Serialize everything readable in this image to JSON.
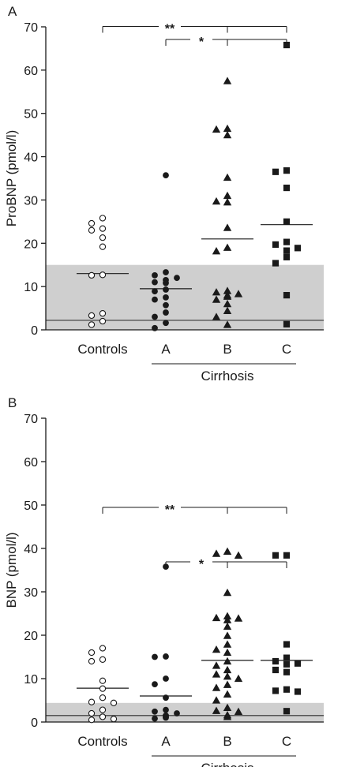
{
  "chart_data": [
    {
      "type": "scatter",
      "panel": "A",
      "ylabel": "ProBNP (pmol/l)",
      "ylim": [
        0,
        70
      ],
      "yticks": [
        0,
        10,
        20,
        30,
        40,
        50,
        60,
        70
      ],
      "categories": [
        "Controls",
        "A",
        "B",
        "C"
      ],
      "group_bracket_label": "Cirrhosis",
      "reference_band": [
        0,
        15
      ],
      "reference_line": 2.2,
      "significance": [
        {
          "label": "**",
          "from": "Controls",
          "to": [
            "B",
            "C"
          ]
        },
        {
          "label": "*",
          "from": "A",
          "to": [
            "B",
            "C"
          ]
        }
      ],
      "series": [
        {
          "category": "Controls",
          "marker": "circle-open",
          "median": 13.0,
          "values": [
            25.8,
            24.6,
            23.4,
            23.0,
            21.3,
            19.2,
            12.7,
            12.6,
            3.8,
            3.3,
            2.0,
            1.2
          ]
        },
        {
          "category": "A",
          "marker": "circle-filled",
          "median": 9.5,
          "values": [
            35.7,
            13.3,
            12.6,
            12.0,
            11.5,
            11.0,
            10.8,
            9.3,
            8.9,
            7.5,
            7.0,
            5.7,
            4.0,
            3.0,
            1.6,
            0.4
          ]
        },
        {
          "category": "B",
          "marker": "triangle-filled",
          "median": 21.0,
          "values": [
            57.5,
            46.5,
            46.3,
            45.0,
            35.2,
            31.0,
            29.7,
            29.5,
            23.6,
            19.0,
            18.2,
            9.0,
            8.7,
            8.3,
            8.0,
            7.7,
            7.0,
            6.0,
            4.4,
            3.0,
            1.2
          ]
        },
        {
          "category": "C",
          "marker": "square-filled",
          "median": 24.3,
          "values": [
            65.8,
            36.8,
            36.5,
            32.8,
            25.0,
            20.3,
            19.7,
            18.9,
            18.3,
            16.8,
            15.4,
            8.0,
            1.3
          ]
        }
      ]
    },
    {
      "type": "scatter",
      "panel": "B",
      "ylabel": "BNP (pmol/l)",
      "ylim": [
        0,
        70
      ],
      "yticks": [
        0,
        10,
        20,
        30,
        40,
        50,
        60,
        70
      ],
      "categories": [
        "Controls",
        "A",
        "B",
        "C"
      ],
      "group_bracket_label": "Cirrhosis",
      "reference_band": [
        0,
        4.4
      ],
      "reference_line": 1.5,
      "significance": [
        {
          "label": "**",
          "from": "Controls",
          "to": [
            "B",
            "C"
          ]
        },
        {
          "label": "*",
          "from": "A",
          "to": [
            "B",
            "C"
          ]
        }
      ],
      "series": [
        {
          "category": "Controls",
          "marker": "circle-open",
          "median": 7.8,
          "values": [
            17.0,
            16.0,
            14.4,
            14.0,
            9.5,
            7.7,
            5.6,
            4.6,
            4.4,
            2.8,
            2.0,
            1.2,
            0.7,
            0.5
          ]
        },
        {
          "category": "A",
          "marker": "circle-filled",
          "median": 6.0,
          "values": [
            35.8,
            15.1,
            15.0,
            10.0,
            8.7,
            5.6,
            2.8,
            2.4,
            2.0,
            1.5,
            1.2,
            1.0,
            0.8
          ]
        },
        {
          "category": "B",
          "marker": "triangle-filled",
          "median": 14.2,
          "values": [
            39.3,
            38.8,
            38.4,
            29.8,
            24.4,
            24.0,
            23.9,
            23.5,
            22.0,
            19.9,
            17.9,
            16.7,
            16.0,
            14.0,
            13.0,
            12.0,
            11.0,
            10.5,
            10.0,
            8.6,
            7.9,
            6.4,
            5.0,
            3.3,
            2.6,
            2.4,
            1.6,
            1.2
          ]
        },
        {
          "category": "C",
          "marker": "square-filled",
          "median": 14.2,
          "values": [
            38.4,
            38.4,
            17.9,
            14.8,
            14.0,
            13.5,
            13.3,
            12.0,
            11.5,
            7.5,
            7.2,
            7.0,
            2.5
          ]
        }
      ]
    }
  ]
}
